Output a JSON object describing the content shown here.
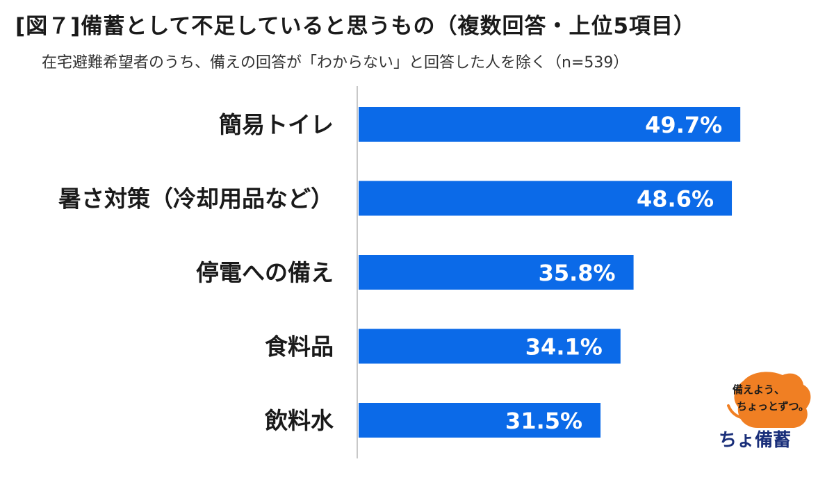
{
  "title": "[図７]備蓄として不足していると思うもの（複数回答・上位5項目）",
  "subtitle": "在宅避難希望者のうち、備えの回答が「わからない」と回答した人を除く（n=539）",
  "colors": {
    "bar": "#0b6ae8",
    "axis": "#c8c8c8",
    "logo_orange": "#f07f23"
  },
  "chart_data": {
    "type": "bar",
    "orientation": "horizontal",
    "categories": [
      "簡易トイレ",
      "暑さ対策（冷却用品など）",
      "停電への備え",
      "食料品",
      "飲料水"
    ],
    "values": [
      49.7,
      48.6,
      35.8,
      34.1,
      31.5
    ],
    "value_labels": [
      "49.7%",
      "48.6%",
      "35.8%",
      "34.1%",
      "31.5%"
    ],
    "unit": "%",
    "xlim": [
      0,
      60
    ],
    "grid": false,
    "legend": "none"
  },
  "logo": {
    "line1": "備えよう、",
    "line2": "ちょっとずつ。",
    "brand": "ちょ備蓄"
  }
}
